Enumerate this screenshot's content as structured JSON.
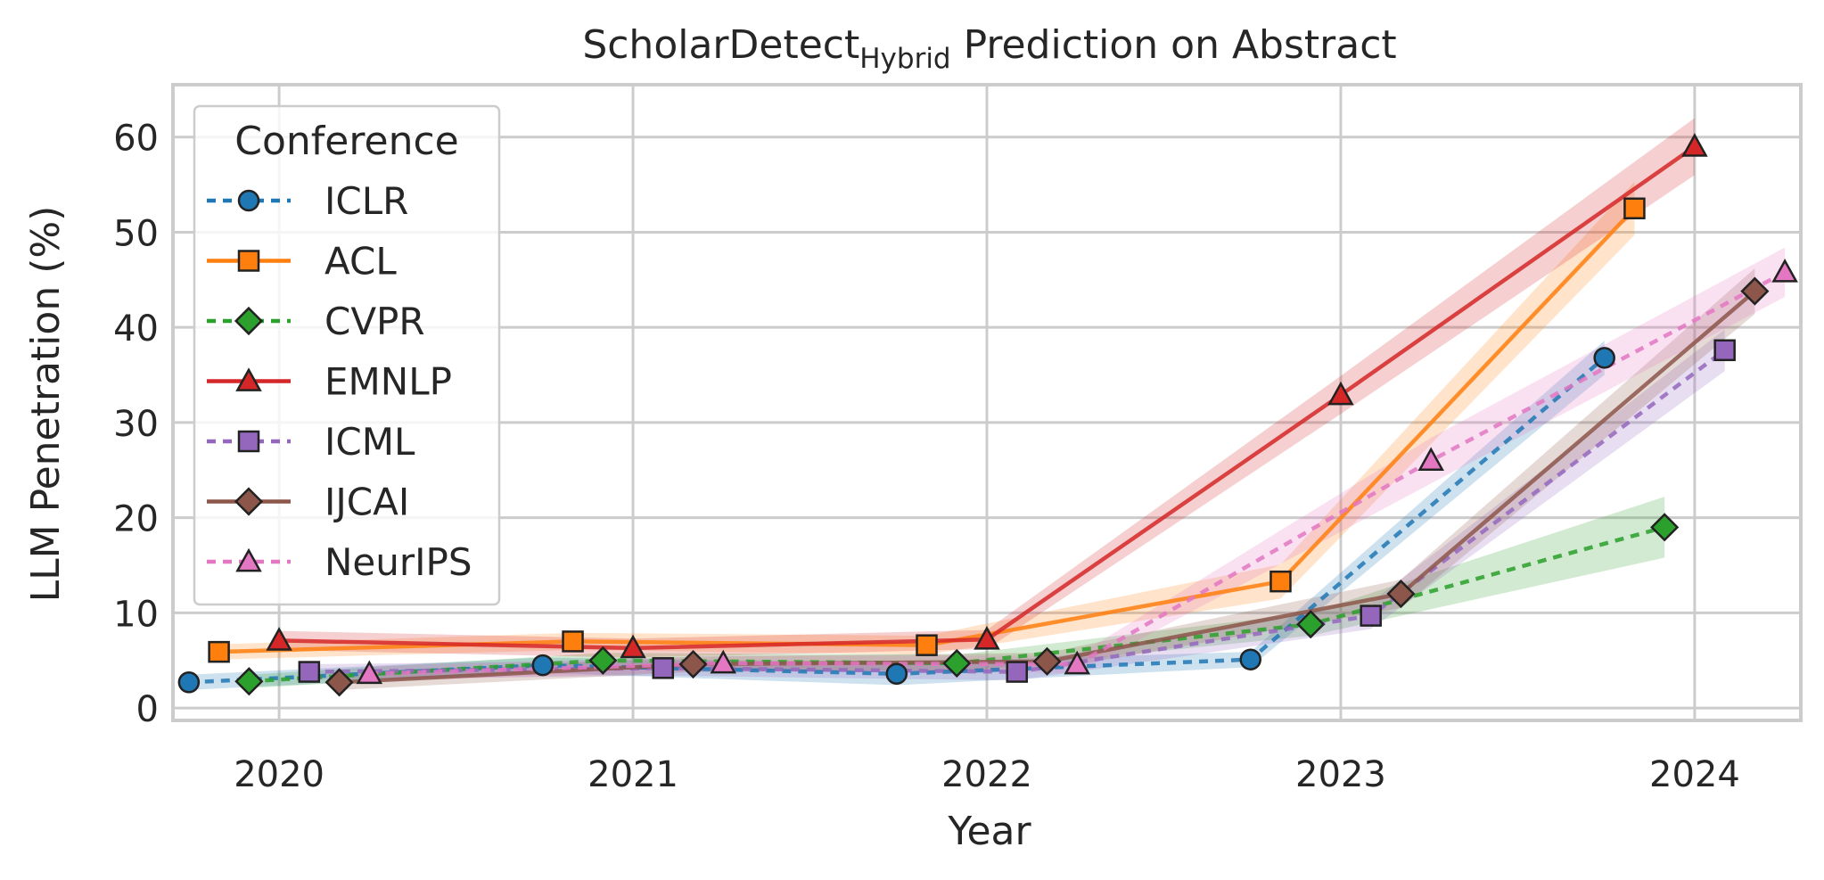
{
  "chart_data": {
    "type": "line",
    "title_main": "ScholarDetect",
    "title_sub": "Hybrid",
    "title_rest": " Prediction on Abstract",
    "xlabel": "Year",
    "ylabel": "LLM Penetration (%)",
    "x": [
      2020,
      2021,
      2022,
      2023,
      2024
    ],
    "x_ticks": [
      "2020",
      "2021",
      "2022",
      "2023",
      "2024"
    ],
    "y_ticks": [
      0,
      10,
      20,
      30,
      40,
      50,
      60
    ],
    "xlim": [
      2019.7,
      2024.3
    ],
    "ylim": [
      -1.3,
      65.5
    ],
    "grid": true,
    "legend": {
      "title": "Conference",
      "position": "upper-left"
    },
    "series": [
      {
        "name": "ICLR",
        "color": "#1f77b4",
        "dash": "dotted",
        "marker": "circle",
        "values": [
          2.7,
          4.5,
          3.6,
          5.1,
          36.8
        ],
        "band": [
          0.8,
          0.8,
          1.2,
          0.8,
          1.8
        ]
      },
      {
        "name": "ACL",
        "color": "#ff7f0e",
        "dash": "solid",
        "marker": "square",
        "values": [
          5.9,
          7.0,
          6.6,
          13.3,
          52.5
        ],
        "band": [
          0.8,
          0.9,
          1.0,
          1.8,
          2.8
        ]
      },
      {
        "name": "CVPR",
        "color": "#2ca02c",
        "dash": "dotted",
        "marker": "diamond",
        "values": [
          2.8,
          5.0,
          4.7,
          8.8,
          19.0
        ],
        "band": [
          0.7,
          0.8,
          0.9,
          1.2,
          3.2
        ]
      },
      {
        "name": "EMNLP",
        "color": "#d62728",
        "dash": "solid",
        "marker": "triangle",
        "values": [
          7.1,
          6.3,
          7.2,
          32.9,
          59.0
        ],
        "band": [
          1.0,
          1.0,
          1.0,
          2.0,
          3.0
        ]
      },
      {
        "name": "ICML",
        "color": "#9467bd",
        "dash": "dotted",
        "marker": "square",
        "values": [
          3.8,
          4.2,
          3.8,
          9.7,
          37.6
        ],
        "band": [
          0.8,
          0.8,
          0.9,
          1.4,
          2.2
        ]
      },
      {
        "name": "IJCAI",
        "color": "#8c564b",
        "dash": "solid",
        "marker": "diamond",
        "values": [
          2.7,
          4.6,
          4.9,
          12.0,
          43.8
        ],
        "band": [
          0.8,
          0.8,
          0.9,
          1.5,
          2.4
        ]
      },
      {
        "name": "NeurIPS",
        "color": "#e377c2",
        "dash": "dotted",
        "marker": "triangle",
        "values": [
          3.6,
          4.7,
          4.6,
          26.0,
          45.8
        ],
        "band": [
          0.8,
          0.8,
          0.9,
          2.4,
          2.6
        ]
      }
    ]
  }
}
